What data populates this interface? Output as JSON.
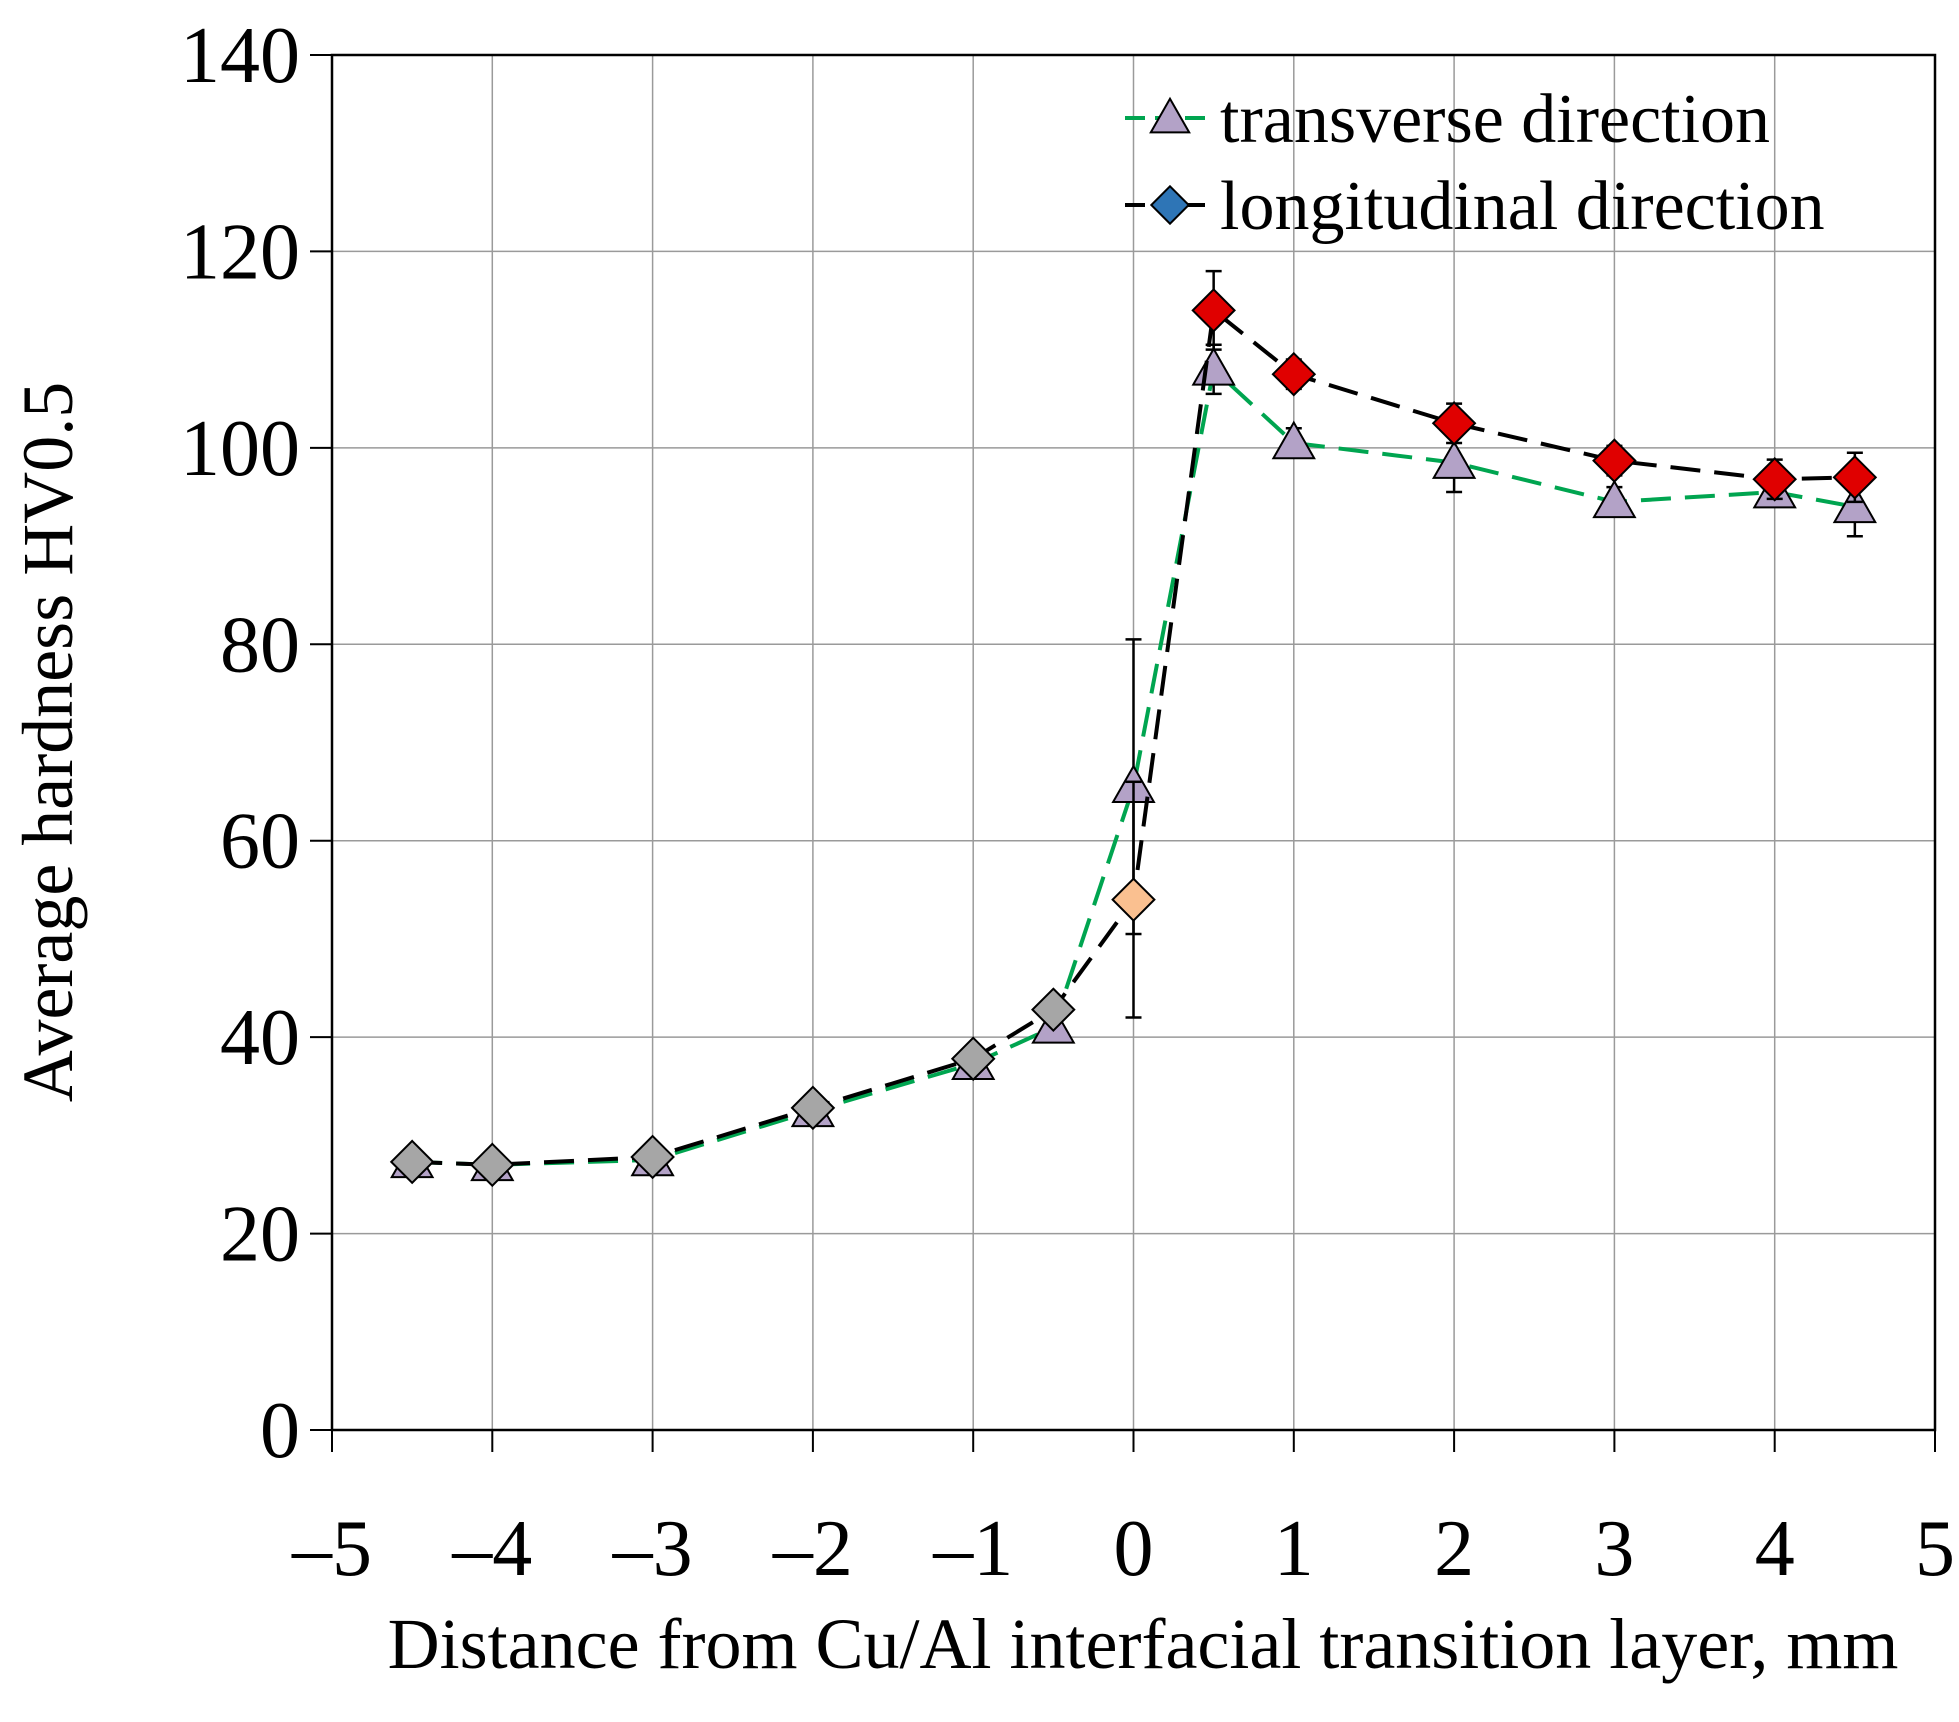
{
  "chart_data": {
    "type": "line",
    "title": "",
    "xlabel": "Distance from Cu/Al interfacial transition layer, mm",
    "ylabel": "Average hardness HV0.5",
    "xlim": [
      -5,
      5
    ],
    "ylim": [
      0,
      140
    ],
    "grid": true,
    "legend_position": "top-right",
    "x_ticks": [
      -5,
      -4,
      -3,
      -2,
      -1,
      0,
      1,
      2,
      3,
      4,
      5
    ],
    "x_tick_labels": [
      "–5",
      "–4",
      "–3",
      "–2",
      "–1",
      "0",
      "1",
      "2",
      "3",
      "4",
      "5"
    ],
    "y_ticks": [
      0,
      20,
      40,
      60,
      80,
      100,
      120,
      140
    ],
    "y_tick_labels": [
      "0",
      "20",
      "40",
      "60",
      "80",
      "100",
      "120",
      "140"
    ],
    "series": [
      {
        "name": "transverse direction",
        "line_color": "#00a550",
        "marker": "triangle",
        "marker_color": "#b3a2c7",
        "x": [
          -4.5,
          -4,
          -3,
          -2,
          -1,
          -0.5,
          0,
          0.5,
          1,
          2,
          3,
          4,
          4.5
        ],
        "values": [
          27.3,
          27.0,
          27.5,
          32.5,
          37.3,
          41.0,
          65.5,
          108.0,
          100.5,
          98.5,
          94.5,
          95.5,
          94.0
        ],
        "errors": [
          0.5,
          0.5,
          0.5,
          0.5,
          0.5,
          0.5,
          15.0,
          2.5,
          1.5,
          3.0,
          1.5,
          1.5,
          3.0
        ]
      },
      {
        "name": "longitudinal direction",
        "line_color": "#000000",
        "marker": "diamond",
        "legend_marker_color": "#2e75b6",
        "x": [
          -4.5,
          -4,
          -3,
          -2,
          -1,
          -0.5,
          0,
          0.5,
          1,
          2,
          3,
          4,
          4.5
        ],
        "values": [
          27.3,
          27.0,
          27.8,
          32.8,
          37.8,
          42.8,
          54.0,
          114.0,
          107.5,
          102.5,
          98.7,
          96.8,
          97.0
        ],
        "errors": [
          0.5,
          0.5,
          0.5,
          0.5,
          0.5,
          0.5,
          12.0,
          4.0,
          1.5,
          2.0,
          1.5,
          2.0,
          2.5
        ],
        "marker_colors": [
          "#a6a6a6",
          "#a6a6a6",
          "#a6a6a6",
          "#a6a6a6",
          "#a6a6a6",
          "#a6a6a6",
          "#fac090",
          "#e00000",
          "#e00000",
          "#e00000",
          "#e00000",
          "#e00000",
          "#e00000"
        ]
      }
    ]
  }
}
